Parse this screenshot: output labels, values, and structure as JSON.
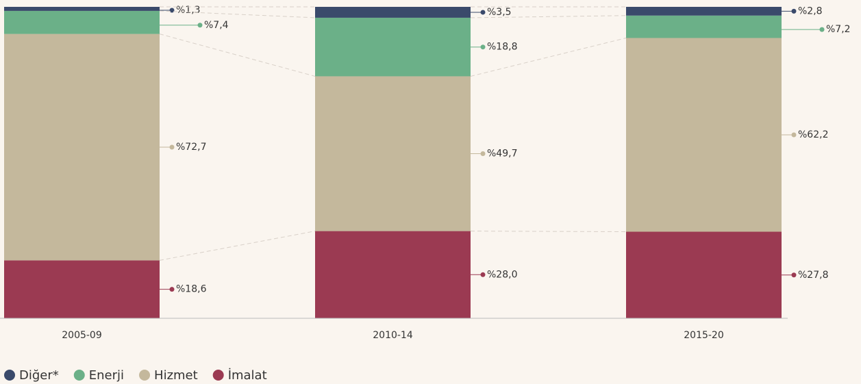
{
  "chart_data": {
    "type": "stacked_bar",
    "categories": [
      "2005-09",
      "2010-14",
      "2015-20"
    ],
    "series": [
      {
        "name": "İmalat",
        "color": "#9b3a52",
        "values": [
          18.6,
          28.0,
          27.8
        ],
        "value_labels": [
          "%18,6",
          "%28,0",
          "%27,8"
        ]
      },
      {
        "name": "Hizmet",
        "color": "#c4b89c",
        "values": [
          72.7,
          49.7,
          62.2
        ],
        "value_labels": [
          "%72,7",
          "%49,7",
          "%62,2"
        ]
      },
      {
        "name": "Enerji",
        "color": "#6bb088",
        "values": [
          7.4,
          18.8,
          7.2
        ],
        "value_labels": [
          "%7,4",
          "%18,8",
          "%7,2"
        ]
      },
      {
        "name": "Diğer*",
        "color": "#3a4a6b",
        "values": [
          1.3,
          3.5,
          2.8
        ],
        "value_labels": [
          "%1,3",
          "%3,5",
          "%2,8"
        ]
      }
    ],
    "legend": "bottom-left"
  }
}
